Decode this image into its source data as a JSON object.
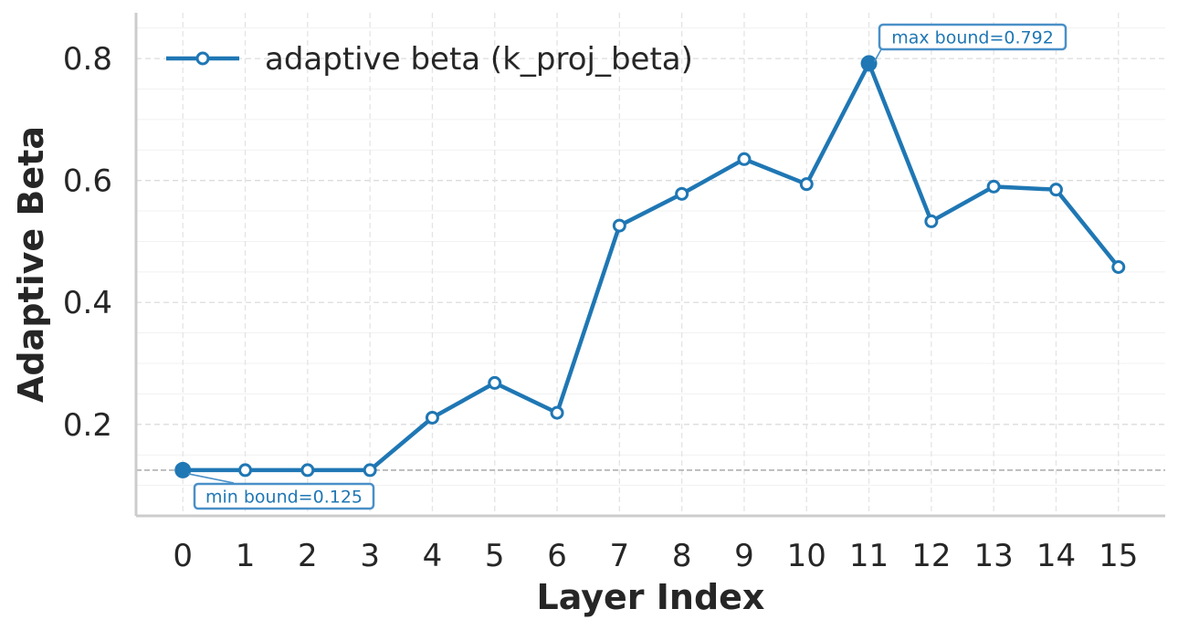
{
  "chart_data": {
    "type": "line",
    "xlabel": "Layer Index",
    "ylabel": "Adaptive Beta",
    "xlim": [
      -0.75,
      15.75
    ],
    "ylim": [
      0.05,
      0.875
    ],
    "x": [
      0,
      1,
      2,
      3,
      4,
      5,
      6,
      7,
      8,
      9,
      10,
      11,
      12,
      13,
      14,
      15
    ],
    "xticks": [
      "0",
      "1",
      "2",
      "3",
      "4",
      "5",
      "6",
      "7",
      "8",
      "9",
      "10",
      "11",
      "12",
      "13",
      "14",
      "15"
    ],
    "yticks": [
      0.2,
      0.4,
      0.6,
      0.8
    ],
    "ytick_labels": [
      "0.2",
      "0.4",
      "0.6",
      "0.8"
    ],
    "series": [
      {
        "name": "adaptive beta (k_proj_beta)",
        "values": [
          0.125,
          0.125,
          0.125,
          0.125,
          0.211,
          0.268,
          0.219,
          0.526,
          0.578,
          0.635,
          0.594,
          0.792,
          0.533,
          0.59,
          0.585,
          0.458
        ]
      }
    ],
    "reference_line": {
      "y": 0.125,
      "style": "dashed"
    },
    "annotations": [
      {
        "text": "min bound=0.125",
        "x": 0,
        "y": 0.125
      },
      {
        "text": "max bound=0.792",
        "x": 11,
        "y": 0.792
      }
    ],
    "grid": true,
    "legend_position": "top-left",
    "colors": {
      "series": "#1f77b4",
      "annotation_border": "#4a90c8",
      "grid": "#dcdcdc",
      "axis": "#cccccc",
      "reference": "#b0b0b0"
    }
  }
}
